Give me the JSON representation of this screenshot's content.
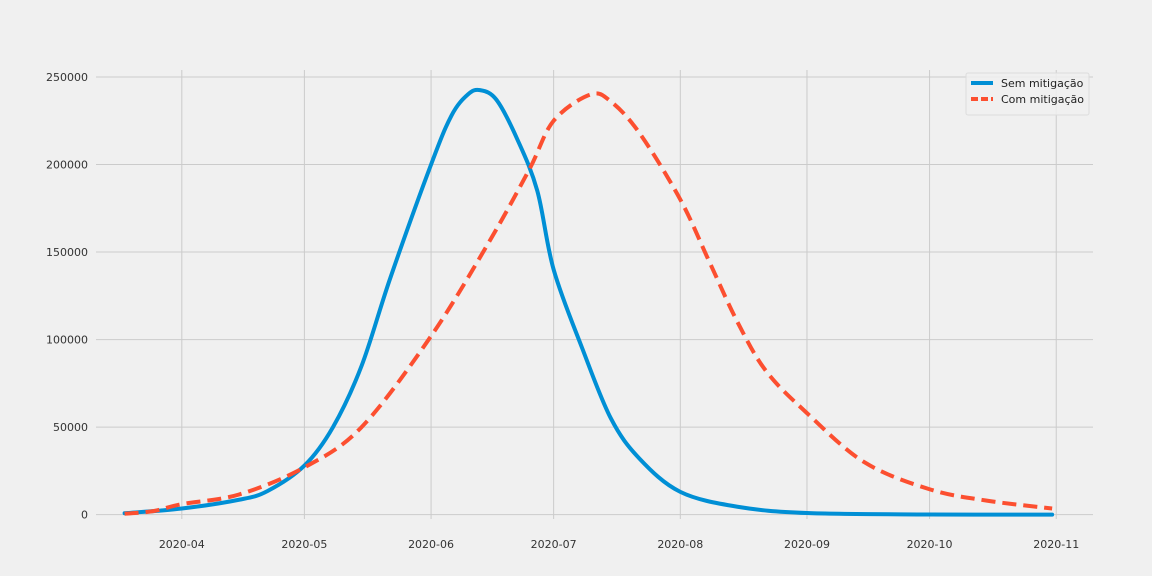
{
  "chart_data": {
    "type": "line",
    "title": "",
    "xlabel": "",
    "ylabel": "",
    "grid": true,
    "legend_position": "top-right",
    "x_ticks": [
      "2020-04",
      "2020-05",
      "2020-06",
      "2020-07",
      "2020-08",
      "2020-09",
      "2020-10",
      "2020-11"
    ],
    "y_ticks": [
      0,
      50000,
      100000,
      150000,
      200000,
      250000
    ],
    "xlim": [
      "2020-03-11",
      "2020-11-10"
    ],
    "ylim": [
      -2500,
      254000
    ],
    "series": [
      {
        "name": "Sem mitigação",
        "color": "#008fd5",
        "line_style": "solid",
        "points": [
          [
            "2020-03-18",
            800
          ],
          [
            "2020-04-01",
            3500
          ],
          [
            "2020-04-15",
            8500
          ],
          [
            "2020-04-22",
            13500
          ],
          [
            "2020-05-01",
            28000
          ],
          [
            "2020-05-08",
            50000
          ],
          [
            "2020-05-15",
            85000
          ],
          [
            "2020-05-22",
            135000
          ],
          [
            "2020-06-01",
            200000
          ],
          [
            "2020-06-06",
            228000
          ],
          [
            "2020-06-10",
            240000
          ],
          [
            "2020-06-13",
            242500
          ],
          [
            "2020-06-17",
            237000
          ],
          [
            "2020-06-22",
            215000
          ],
          [
            "2020-06-27",
            185000
          ],
          [
            "2020-07-01",
            140000
          ],
          [
            "2020-07-08",
            95000
          ],
          [
            "2020-07-15",
            55000
          ],
          [
            "2020-07-22",
            32000
          ],
          [
            "2020-08-01",
            13000
          ],
          [
            "2020-08-15",
            4500
          ],
          [
            "2020-09-01",
            900
          ],
          [
            "2020-10-01",
            100
          ],
          [
            "2020-10-31",
            0
          ]
        ]
      },
      {
        "name": "Com mitigação",
        "color": "#fc4f30",
        "line_style": "dashed",
        "points": [
          [
            "2020-03-18",
            500
          ],
          [
            "2020-03-25",
            2000
          ],
          [
            "2020-04-01",
            6000
          ],
          [
            "2020-04-15",
            11500
          ],
          [
            "2020-05-01",
            27000
          ],
          [
            "2020-05-15",
            50000
          ],
          [
            "2020-06-01",
            102000
          ],
          [
            "2020-06-15",
            155000
          ],
          [
            "2020-06-25",
            197000
          ],
          [
            "2020-07-01",
            225000
          ],
          [
            "2020-07-10",
            240000
          ],
          [
            "2020-07-15",
            236000
          ],
          [
            "2020-07-22",
            218000
          ],
          [
            "2020-08-01",
            180000
          ],
          [
            "2020-08-08",
            145000
          ],
          [
            "2020-08-15",
            110000
          ],
          [
            "2020-08-22",
            82000
          ],
          [
            "2020-09-01",
            58000
          ],
          [
            "2020-09-15",
            30000
          ],
          [
            "2020-10-01",
            14500
          ],
          [
            "2020-10-15",
            8000
          ],
          [
            "2020-10-31",
            3500
          ]
        ]
      }
    ]
  }
}
